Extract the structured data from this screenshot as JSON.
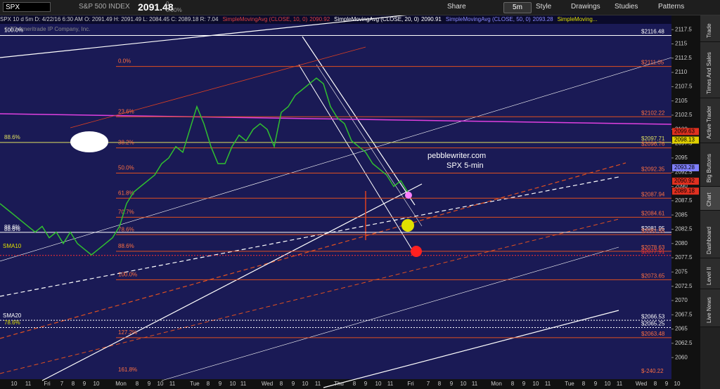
{
  "toolbar": {
    "symbol": "SPX",
    "index_name": "S&P 500 INDEX",
    "price": "2091.48",
    "change": "0",
    "change_pct": "0.00%",
    "interval": "5m",
    "buttons": [
      "Share",
      "Style",
      "Drawings",
      "Studies",
      "Patterns"
    ]
  },
  "info_bar": {
    "quote": "SPX 10 d 5m  D: 4/22/16 6:30 AM  O: 2091.49  H: 2091.49  L: 2084.45  C: 2089.18  R: 7.04",
    "studies": [
      {
        "name": "SimpleMovingAvg (CLOSE, 10, 0)",
        "value": "2090.92",
        "color": "#e04040"
      },
      {
        "name": "SimpleMovingAvg (CLOSE, 20, 0)",
        "value": "2090.91",
        "color": "#ffffff"
      },
      {
        "name": "SimpleMovingAvg (CLOSE, 50, 0)",
        "value": "2093.28",
        "color": "#8888ff"
      },
      {
        "name": "SimpleMoving...",
        "value": "",
        "color": "#e0e000"
      }
    ]
  },
  "side_tabs": [
    "Trade",
    "Times And Sales",
    "Active Trader",
    "Big Buttons",
    "Chart",
    "Dashboard",
    "Level II",
    "Live News"
  ],
  "chart_data": {
    "type": "line",
    "copyright": "© TD Ameritrade IP Company, Inc.",
    "annotations": [
      "pebblewriter.com",
      "SPX 5-min",
      "SMA10",
      "SMA20",
      "88.6%",
      "78.6%"
    ],
    "xtick_labels": [
      "10",
      "11",
      "Fri",
      "7",
      "8",
      "9",
      "10",
      "Mon",
      "8",
      "9",
      "10",
      "11",
      "Tue",
      "8",
      "9",
      "10",
      "11",
      "Wed",
      "8",
      "9",
      "10",
      "11",
      "Thu",
      "8",
      "9",
      "10",
      "11",
      "Fri",
      "7",
      "8",
      "9",
      "10",
      "11",
      "Mon",
      "8",
      "9",
      "10",
      "11",
      "Tue",
      "8",
      "9",
      "10",
      "11",
      "Wed",
      "8",
      "9",
      "10"
    ],
    "series": [
      {
        "name": "SPX",
        "color": "#30c030",
        "values": [
          2087,
          2086,
          2085,
          2084,
          2083,
          2082,
          2083,
          2081,
          2082,
          2080,
          2082,
          2080,
          2079,
          2078,
          2079,
          2080,
          2081,
          2083,
          2087,
          2089,
          2090,
          2091,
          2092,
          2094,
          2095,
          2097,
          2096,
          2100,
          2104,
          2101,
          2097,
          2094,
          2094,
          2097,
          2099,
          2098,
          2100,
          2101,
          2100,
          2097,
          2103,
          2104,
          2106,
          2107,
          2108,
          2109,
          2108,
          2104,
          2102,
          2101,
          2098,
          2097,
          2096,
          2094,
          2093,
          2092,
          2090,
          2091,
          2089
        ]
      }
    ],
    "ylim": [
      2056.7,
      2119
    ],
    "yticks": [
      2060,
      2062.5,
      2065,
      2067.5,
      2070,
      2072.5,
      2075,
      2077.5,
      2080,
      2082.5,
      2085,
      2087.5,
      2090,
      2092.5,
      2095,
      2097.5,
      2100,
      2102.5,
      2105,
      2107.5,
      2110,
      2112.5,
      2115,
      2117.5
    ],
    "levels": [
      {
        "value": 2116.48,
        "label": "$2116.48",
        "fib": "100.0%",
        "color": "#ffffff"
      },
      {
        "value": 2111.05,
        "label": "$2111.05",
        "fib": "0.0%",
        "color": "#e05020"
      },
      {
        "value": 2102.22,
        "label": "$2102.22",
        "fib": "23.6%",
        "color": "#e05020"
      },
      {
        "value": 2097.71,
        "label": "$2097.71",
        "fib": "88.6%",
        "color": "#e0e060"
      },
      {
        "value": 2096.76,
        "label": "$2096.76",
        "fib": "38.2%",
        "color": "#e05020"
      },
      {
        "value": 2092.35,
        "label": "$2092.35",
        "fib": "50.0%",
        "color": "#e05020"
      },
      {
        "value": 2087.94,
        "label": "$2087.94",
        "fib": "61.8%",
        "color": "#e05020"
      },
      {
        "value": 2084.61,
        "label": "$2084.61",
        "fib": "70.7%",
        "color": "#e05020"
      },
      {
        "value": 2081.95,
        "label": "$2081.95",
        "fib": "88.6%",
        "color": "#ffffff"
      },
      {
        "value": 2081.55,
        "label": "$2081.55",
        "fib": "78.6%",
        "color": "#e05020"
      },
      {
        "value": 2078.63,
        "label": "$2078.63",
        "fib": "88.6%",
        "color": "#e05020"
      },
      {
        "value": 2077.91,
        "label": "$2077.91",
        "fib": "",
        "color": "#ff3030"
      },
      {
        "value": 2073.65,
        "label": "$2073.65",
        "fib": "100.0%",
        "color": "#e05020"
      },
      {
        "value": 2066.53,
        "label": "$2066.53",
        "fib": "",
        "color": "#ffffff"
      },
      {
        "value": 2065.25,
        "label": "$2065.25",
        "fib": "",
        "color": "#ffffff"
      },
      {
        "value": 2063.48,
        "label": "$2063.48",
        "fib": "127.2%",
        "color": "#e05020"
      },
      {
        "value": -240.22,
        "label": "$-240.22",
        "fib": "161.8%",
        "color": "#e05020"
      }
    ],
    "price_tags": [
      {
        "value": 2099.63,
        "color": "#e03020"
      },
      {
        "value": 2098.13,
        "color": "#e0d000"
      },
      {
        "value": 2093.28,
        "color": "#8080ff"
      },
      {
        "value": 2090.92,
        "color": "#e03020"
      },
      {
        "value": 2089.18,
        "color": "#e03020"
      }
    ]
  }
}
